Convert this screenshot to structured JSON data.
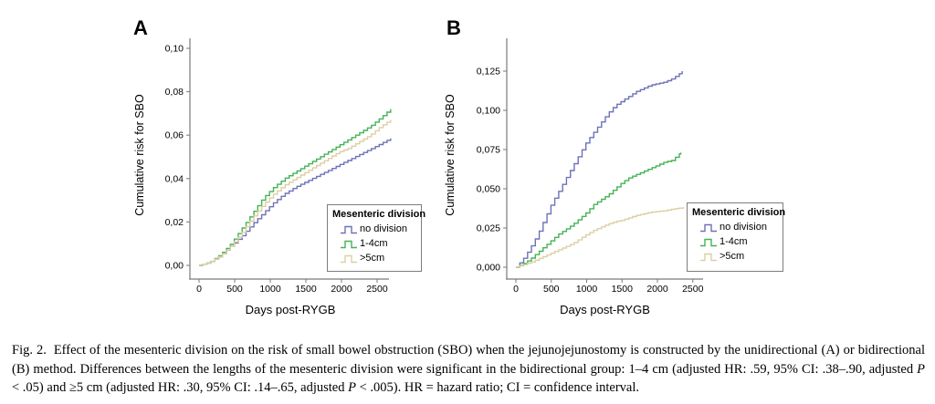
{
  "chart_data": [
    {
      "panel_label": "A",
      "type": "line",
      "step": true,
      "xlabel": "Days post-RYGB",
      "ylabel": "Cumulative risk for SBO",
      "legend_title": "Mesenteric division",
      "legend_position": "inside-bottom-right",
      "grid": false,
      "xlim": [
        0,
        2850
      ],
      "ylim": [
        0,
        0.105
      ],
      "x_ticks": [
        0,
        500,
        1000,
        1500,
        2000,
        2500
      ],
      "y_ticks": [
        {
          "v": 0.0,
          "label": "0,00"
        },
        {
          "v": 0.02,
          "label": "0,02"
        },
        {
          "v": 0.04,
          "label": "0,04"
        },
        {
          "v": 0.06,
          "label": "0,06"
        },
        {
          "v": 0.08,
          "label": "0,08"
        },
        {
          "v": 0.1,
          "label": "0,10"
        }
      ],
      "series": [
        {
          "name": "no division",
          "color": "#6e72b8",
          "points": [
            [
              0,
              0
            ],
            [
              150,
              0.0015
            ],
            [
              300,
              0.0045
            ],
            [
              450,
              0.009
            ],
            [
              600,
              0.0135
            ],
            [
              750,
              0.019
            ],
            [
              900,
              0.024
            ],
            [
              1050,
              0.029
            ],
            [
              1200,
              0.033
            ],
            [
              1350,
              0.036
            ],
            [
              1500,
              0.0385
            ],
            [
              1650,
              0.041
            ],
            [
              1800,
              0.0435
            ],
            [
              1950,
              0.046
            ],
            [
              2100,
              0.0485
            ],
            [
              2250,
              0.051
            ],
            [
              2400,
              0.0535
            ],
            [
              2550,
              0.056
            ],
            [
              2690,
              0.0585
            ]
          ]
        },
        {
          "name": "1-4cm",
          "color": "#44b356",
          "points": [
            [
              0,
              0
            ],
            [
              150,
              0.0015
            ],
            [
              300,
              0.005
            ],
            [
              450,
              0.01
            ],
            [
              600,
              0.017
            ],
            [
              750,
              0.024
            ],
            [
              900,
              0.031
            ],
            [
              1050,
              0.036
            ],
            [
              1200,
              0.04
            ],
            [
              1350,
              0.043
            ],
            [
              1500,
              0.046
            ],
            [
              1650,
              0.049
            ],
            [
              1800,
              0.052
            ],
            [
              1950,
              0.055
            ],
            [
              2100,
              0.058
            ],
            [
              2250,
              0.061
            ],
            [
              2400,
              0.064
            ],
            [
              2550,
              0.068
            ],
            [
              2690,
              0.072
            ]
          ]
        },
        {
          "name": ">5cm",
          "color": "#ddcfa3",
          "points": [
            [
              0,
              0
            ],
            [
              150,
              0.0015
            ],
            [
              300,
              0.0045
            ],
            [
              450,
              0.009
            ],
            [
              600,
              0.015
            ],
            [
              750,
              0.022
            ],
            [
              900,
              0.028
            ],
            [
              1050,
              0.033
            ],
            [
              1200,
              0.037
            ],
            [
              1350,
              0.04
            ],
            [
              1500,
              0.043
            ],
            [
              1650,
              0.046
            ],
            [
              1800,
              0.049
            ],
            [
              1950,
              0.052
            ],
            [
              2100,
              0.054
            ],
            [
              2250,
              0.057
            ],
            [
              2400,
              0.06
            ],
            [
              2550,
              0.064
            ],
            [
              2690,
              0.067
            ]
          ]
        }
      ]
    },
    {
      "panel_label": "B",
      "type": "line",
      "step": true,
      "xlabel": "Days post-RYGB",
      "ylabel": "Cumulative risk for SBO",
      "legend_title": "Mesenteric division",
      "legend_position": "inside-bottom-right",
      "grid": false,
      "xlim": [
        0,
        2650
      ],
      "ylim": [
        0,
        0.138
      ],
      "x_ticks": [
        0,
        500,
        1000,
        1500,
        2000,
        2500
      ],
      "y_ticks": [
        {
          "v": 0.0,
          "label": "0,000"
        },
        {
          "v": 0.025,
          "label": "0,025"
        },
        {
          "v": 0.05,
          "label": "0,050"
        },
        {
          "v": 0.075,
          "label": "0,075"
        },
        {
          "v": 0.1,
          "label": "0,100"
        },
        {
          "v": 0.125,
          "label": "0,125"
        }
      ],
      "series": [
        {
          "name": "no division",
          "color": "#6e72b8",
          "points": [
            [
              0,
              0
            ],
            [
              100,
              0.005
            ],
            [
              200,
              0.012
            ],
            [
              300,
              0.02
            ],
            [
              400,
              0.03
            ],
            [
              500,
              0.04
            ],
            [
              600,
              0.048
            ],
            [
              700,
              0.056
            ],
            [
              800,
              0.064
            ],
            [
              900,
              0.072
            ],
            [
              1000,
              0.08
            ],
            [
              1100,
              0.086
            ],
            [
              1200,
              0.092
            ],
            [
              1300,
              0.098
            ],
            [
              1400,
              0.103
            ],
            [
              1500,
              0.106
            ],
            [
              1600,
              0.109
            ],
            [
              1700,
              0.112
            ],
            [
              1800,
              0.114
            ],
            [
              1900,
              0.116
            ],
            [
              2000,
              0.117
            ],
            [
              2100,
              0.118
            ],
            [
              2200,
              0.12
            ],
            [
              2300,
              0.123
            ],
            [
              2350,
              0.125
            ]
          ]
        },
        {
          "name": "1-4cm",
          "color": "#44b356",
          "points": [
            [
              0,
              0
            ],
            [
              100,
              0.002
            ],
            [
              200,
              0.005
            ],
            [
              300,
              0.009
            ],
            [
              400,
              0.013
            ],
            [
              500,
              0.017
            ],
            [
              600,
              0.021
            ],
            [
              700,
              0.024
            ],
            [
              800,
              0.027
            ],
            [
              900,
              0.031
            ],
            [
              1000,
              0.035
            ],
            [
              1100,
              0.04
            ],
            [
              1200,
              0.043
            ],
            [
              1300,
              0.046
            ],
            [
              1400,
              0.05
            ],
            [
              1500,
              0.054
            ],
            [
              1600,
              0.057
            ],
            [
              1700,
              0.059
            ],
            [
              1800,
              0.061
            ],
            [
              1900,
              0.063
            ],
            [
              2000,
              0.065
            ],
            [
              2100,
              0.067
            ],
            [
              2200,
              0.068
            ],
            [
              2330,
              0.073
            ]
          ]
        },
        {
          "name": ">5cm",
          "color": "#ddcfa3",
          "points": [
            [
              0,
              0
            ],
            [
              100,
              0.0015
            ],
            [
              200,
              0.003
            ],
            [
              300,
              0.005
            ],
            [
              400,
              0.007
            ],
            [
              500,
              0.009
            ],
            [
              600,
              0.011
            ],
            [
              700,
              0.013
            ],
            [
              800,
              0.015
            ],
            [
              900,
              0.018
            ],
            [
              1000,
              0.021
            ],
            [
              1100,
              0.0235
            ],
            [
              1200,
              0.0255
            ],
            [
              1300,
              0.0275
            ],
            [
              1400,
              0.029
            ],
            [
              1500,
              0.03
            ],
            [
              1600,
              0.0315
            ],
            [
              1700,
              0.033
            ],
            [
              1800,
              0.034
            ],
            [
              1900,
              0.035
            ],
            [
              2000,
              0.0355
            ],
            [
              2100,
              0.036
            ],
            [
              2200,
              0.037
            ],
            [
              2370,
              0.038
            ]
          ]
        }
      ]
    }
  ],
  "caption": {
    "segments": [
      {
        "text": "Fig. 2.  Effect of the mesenteric division on the risk of small bowel obstruction (SBO) when the jejunojejunostomy is constructed by the unidirectional (A) or bidirectional (B) method. Differences between the lengths of the mesenteric division were significant in the bidirectional group: 1–4 cm (adjusted HR: .59, 95% CI: .38–.90, adjusted ",
        "italic": false
      },
      {
        "text": "P",
        "italic": true
      },
      {
        "text": " < .05) and ≥5 cm (adjusted HR: .30, 95% CI: .14–.65, adjusted ",
        "italic": false
      },
      {
        "text": "P",
        "italic": true
      },
      {
        "text": " < .005). HR = hazard ratio; CI = confidence interval.",
        "italic": false
      }
    ]
  },
  "style": {
    "axis_color": "#7a7a7a",
    "legend_border_color": "#7d7d7d",
    "background": "#ffffff"
  }
}
